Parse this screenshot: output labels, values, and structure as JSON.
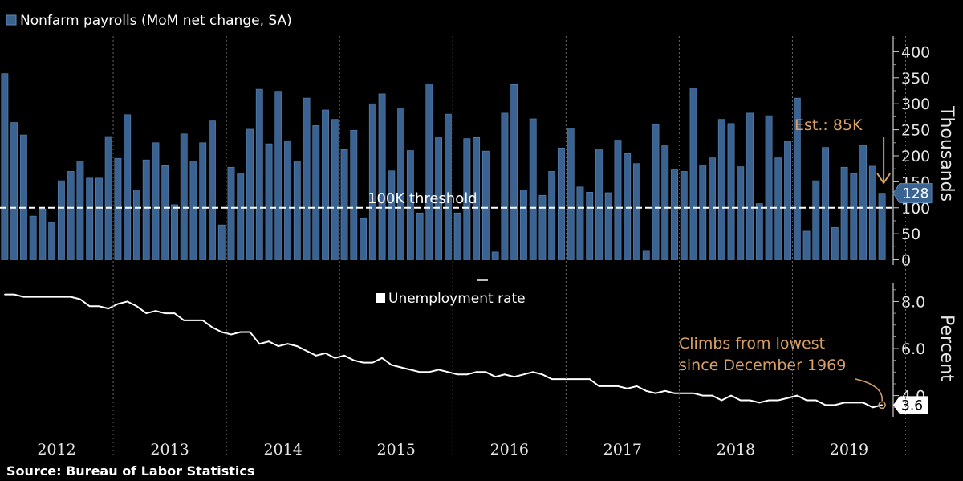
{
  "source": "Source:  Bureau of Labor Statistics",
  "colors": {
    "bar": "#3a6391",
    "bar_edge": "#5d87b7",
    "line": "#ffffff",
    "annotation": "#d9a066",
    "threshold": "#ffffff"
  },
  "chart_data": [
    {
      "type": "bar",
      "legend": "Nonfarm payrolls (MoM net change, SA)",
      "ylabel": "Thousands",
      "ylim": [
        -10,
        430
      ],
      "yticks": [
        0,
        50,
        100,
        150,
        200,
        250,
        300,
        350,
        400
      ],
      "ytick_labels": [
        "0",
        "50",
        "100",
        "150",
        "200",
        "250",
        "300",
        "350",
        "400"
      ],
      "threshold": {
        "value": 100,
        "label": "100K threshold"
      },
      "last_value_label": "128",
      "estimate": {
        "label": "Est.: 85K",
        "value": 85
      },
      "start": "2012-01",
      "values": [
        358,
        264,
        240,
        84,
        98,
        72,
        152,
        170,
        190,
        157,
        157,
        237,
        195,
        279,
        134,
        192,
        225,
        181,
        106,
        242,
        190,
        225,
        267,
        67,
        178,
        167,
        251,
        328,
        223,
        324,
        229,
        190,
        311,
        258,
        288,
        270,
        212,
        249,
        79,
        300,
        319,
        171,
        292,
        210,
        90,
        338,
        236,
        280,
        90,
        233,
        235,
        209,
        15,
        282,
        337,
        134,
        271,
        124,
        170,
        215,
        253,
        140,
        130,
        213,
        129,
        230,
        204,
        185,
        18,
        260,
        221,
        173,
        170,
        330,
        182,
        196,
        270,
        262,
        179,
        282,
        108,
        277,
        196,
        228,
        311,
        55,
        152,
        216,
        62,
        178,
        166,
        220,
        180,
        128
      ]
    },
    {
      "type": "line",
      "legend": "Unemployment rate",
      "ylabel": "Percent",
      "ylim": [
        3.1,
        8.8
      ],
      "yticks": [
        4.0,
        6.0,
        8.0
      ],
      "ytick_labels": [
        "4.0",
        "6.0",
        "8.0"
      ],
      "last_value_label": "3.6",
      "annotation": [
        "Climbs from lowest",
        "since December 1969"
      ],
      "start": "2012-01",
      "values": [
        8.3,
        8.3,
        8.2,
        8.2,
        8.2,
        8.2,
        8.2,
        8.2,
        8.1,
        7.8,
        7.8,
        7.7,
        7.9,
        8.0,
        7.8,
        7.5,
        7.6,
        7.5,
        7.5,
        7.2,
        7.2,
        7.2,
        6.9,
        6.7,
        6.6,
        6.7,
        6.7,
        6.2,
        6.3,
        6.1,
        6.2,
        6.1,
        5.9,
        5.7,
        5.8,
        5.6,
        5.7,
        5.5,
        5.4,
        5.4,
        5.6,
        5.3,
        5.2,
        5.1,
        5.0,
        5.0,
        5.1,
        5.0,
        4.9,
        4.9,
        5.0,
        5.0,
        4.8,
        4.9,
        4.8,
        4.9,
        5.0,
        4.9,
        4.7,
        4.7,
        4.7,
        4.7,
        4.7,
        4.4,
        4.4,
        4.4,
        4.3,
        4.4,
        4.2,
        4.1,
        4.2,
        4.1,
        4.1,
        4.1,
        4.0,
        4.0,
        3.8,
        4.0,
        3.8,
        3.8,
        3.7,
        3.8,
        3.8,
        3.9,
        4.0,
        3.8,
        3.8,
        3.6,
        3.6,
        3.7,
        3.7,
        3.7,
        3.5,
        3.6
      ]
    }
  ],
  "x_axis": {
    "years": [
      "2012",
      "2013",
      "2014",
      "2015",
      "2016",
      "2017",
      "2018",
      "2019"
    ]
  }
}
